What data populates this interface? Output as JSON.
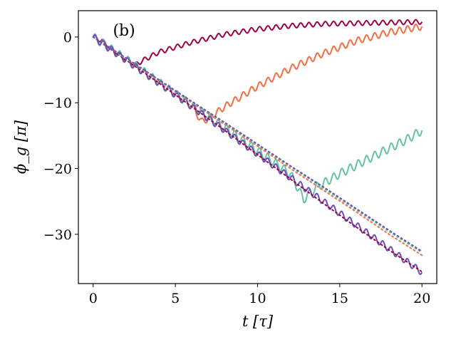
{
  "chart_data": {
    "type": "line",
    "panel_label": "(b)",
    "xlabel": "t [τ]",
    "ylabel": "ϕ_g [π]",
    "xlim": [
      -0.9,
      20.9
    ],
    "ylim": [
      -37.5,
      4.0
    ],
    "xticks": [
      0,
      5,
      10,
      15,
      20
    ],
    "xtick_labels": [
      "0",
      "5",
      "10",
      "15",
      "20"
    ],
    "yticks": [
      0,
      -10,
      -20,
      -30
    ],
    "ytick_labels": [
      "0",
      "−10",
      "−20",
      "−30"
    ],
    "grid": false,
    "series": [
      {
        "color": "#9e0142",
        "style": "solid",
        "step_amp": 0.35,
        "points": [
          [
            0,
            0
          ],
          [
            0.5,
            -0.5
          ],
          [
            1,
            -1.5
          ],
          [
            2,
            -3.3
          ],
          [
            2.6,
            -4.2
          ],
          [
            3,
            -3.6
          ],
          [
            4,
            -2.3
          ],
          [
            6,
            -0.8
          ],
          [
            8,
            0.4
          ],
          [
            10,
            1.2
          ],
          [
            12,
            1.7
          ],
          [
            14,
            2.0
          ],
          [
            16,
            2.1
          ],
          [
            18,
            2.2
          ],
          [
            20,
            2.3
          ]
        ]
      },
      {
        "color": "#f46d43",
        "style": "solid",
        "step_amp": 0.5,
        "points": [
          [
            0,
            0
          ],
          [
            1,
            -1.7
          ],
          [
            2,
            -3.4
          ],
          [
            3,
            -5.1
          ],
          [
            4,
            -6.9
          ],
          [
            5,
            -8.6
          ],
          [
            6,
            -10.4
          ],
          [
            6.6,
            -12.9
          ],
          [
            7,
            -12.4
          ],
          [
            8,
            -10.6
          ],
          [
            10,
            -7.5
          ],
          [
            12,
            -4.8
          ],
          [
            14,
            -2.5
          ],
          [
            16,
            -0.6
          ],
          [
            18,
            0.7
          ],
          [
            20,
            1.6
          ]
        ]
      },
      {
        "color": "#66c2a5",
        "style": "solid",
        "step_amp": 0.65,
        "points": [
          [
            0,
            0
          ],
          [
            2,
            -3.4
          ],
          [
            4,
            -6.9
          ],
          [
            6,
            -10.4
          ],
          [
            8,
            -13.8
          ],
          [
            10,
            -17.3
          ],
          [
            12,
            -20.8
          ],
          [
            12.8,
            -24.7
          ],
          [
            13.5,
            -23.0
          ],
          [
            15,
            -20.8
          ],
          [
            17,
            -18.2
          ],
          [
            19,
            -15.7
          ],
          [
            20,
            -14.2
          ]
        ]
      },
      {
        "color": "#6a4fb5",
        "style": "solid",
        "step_amp": 0.5,
        "points": [
          [
            0,
            0
          ],
          [
            2,
            -3.5
          ],
          [
            4,
            -7.0
          ],
          [
            6,
            -10.6
          ],
          [
            8,
            -14.2
          ],
          [
            10,
            -17.8
          ],
          [
            12,
            -21.4
          ],
          [
            14,
            -25.0
          ],
          [
            16,
            -28.6
          ],
          [
            18,
            -32.2
          ],
          [
            20,
            -35.8
          ]
        ]
      },
      {
        "color": "#9e0142",
        "style": "dotted",
        "step_amp": 0.0,
        "points": [
          [
            0,
            0
          ],
          [
            2,
            -3.5
          ],
          [
            4,
            -7.0
          ],
          [
            6,
            -10.6
          ],
          [
            8,
            -14.2
          ],
          [
            10,
            -17.9
          ],
          [
            12,
            -21.6
          ],
          [
            14,
            -25.3
          ],
          [
            16,
            -28.9
          ],
          [
            18,
            -32.4
          ],
          [
            20,
            -35.7
          ]
        ]
      },
      {
        "color": "#f46d43",
        "style": "dotted",
        "step_amp": 0.0,
        "points": [
          [
            0,
            0
          ],
          [
            2,
            -3.3
          ],
          [
            4,
            -6.7
          ],
          [
            6,
            -10.0
          ],
          [
            8,
            -13.3
          ],
          [
            10,
            -16.6
          ],
          [
            12,
            -20.0
          ],
          [
            14,
            -23.3
          ],
          [
            16,
            -26.6
          ],
          [
            18,
            -30.0
          ],
          [
            20,
            -33.2
          ]
        ]
      },
      {
        "color": "#66c2a5",
        "style": "dotted",
        "step_amp": 0.0,
        "points": [
          [
            0,
            0
          ],
          [
            2,
            -3.3
          ],
          [
            4,
            -6.6
          ],
          [
            6,
            -9.9
          ],
          [
            8,
            -13.1
          ],
          [
            10,
            -16.4
          ],
          [
            12,
            -19.7
          ],
          [
            14,
            -23.0
          ],
          [
            16,
            -26.3
          ],
          [
            18,
            -29.6
          ],
          [
            20,
            -32.8
          ]
        ]
      },
      {
        "color": "#6a4fb5",
        "style": "dotted",
        "step_amp": 0.0,
        "points": [
          [
            0,
            0
          ],
          [
            2,
            -3.2
          ],
          [
            4,
            -6.5
          ],
          [
            6,
            -9.8
          ],
          [
            8,
            -13.0
          ],
          [
            10,
            -16.3
          ],
          [
            12,
            -19.6
          ],
          [
            14,
            -22.8
          ],
          [
            16,
            -26.1
          ],
          [
            18,
            -29.4
          ],
          [
            20,
            -32.6
          ]
        ]
      }
    ]
  }
}
